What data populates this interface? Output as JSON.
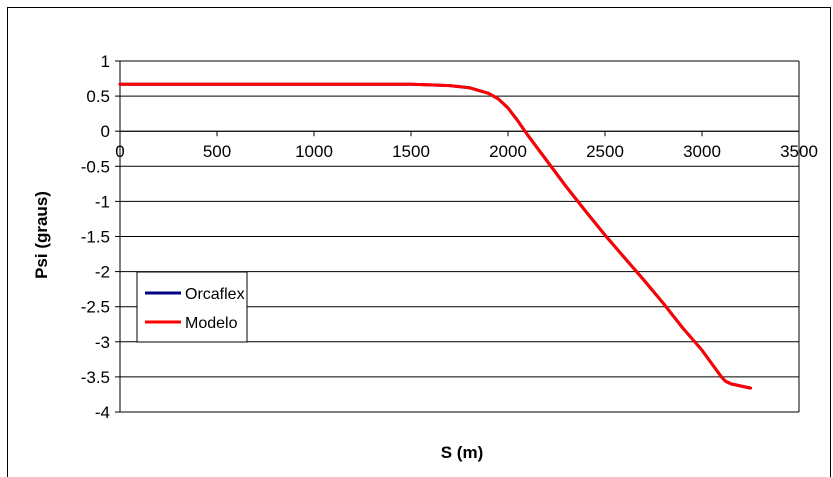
{
  "chart_data": {
    "type": "line",
    "xlabel": "S (m)",
    "ylabel": "Psi (graus)",
    "xlim": [
      0,
      3500
    ],
    "ylim": [
      -4,
      1
    ],
    "x_ticks": [
      "0",
      "500",
      "1000",
      "1500",
      "2000",
      "2500",
      "3000",
      "3500"
    ],
    "y_ticks": [
      "1",
      "0.5",
      "0",
      "-0.5",
      "-1",
      "-1.5",
      "-2",
      "-2.5",
      "-3",
      "-3.5",
      "-4"
    ],
    "grid": "horizontal",
    "legend_position": "bottom-left",
    "series": [
      {
        "name": "Orcaflex",
        "color": "#000080",
        "x": [
          0,
          500,
          1000,
          1500,
          1600,
          1700,
          1800,
          1900,
          1950,
          2000,
          2050,
          2100,
          2200,
          2300,
          2400,
          2500,
          2600,
          2700,
          2800,
          2900,
          3000,
          3100,
          3120,
          3150,
          3200,
          3250
        ],
        "y": [
          0.67,
          0.67,
          0.67,
          0.67,
          0.66,
          0.65,
          0.62,
          0.54,
          0.46,
          0.33,
          0.15,
          -0.05,
          -0.42,
          -0.79,
          -1.14,
          -1.48,
          -1.8,
          -2.12,
          -2.45,
          -2.8,
          -3.12,
          -3.5,
          -3.56,
          -3.6,
          -3.63,
          -3.66
        ]
      },
      {
        "name": "Modelo",
        "color": "#ff0000",
        "x": [
          0,
          500,
          1000,
          1500,
          1600,
          1700,
          1800,
          1900,
          1950,
          2000,
          2050,
          2100,
          2200,
          2300,
          2400,
          2500,
          2600,
          2700,
          2800,
          2900,
          3000,
          3100,
          3120,
          3150,
          3200,
          3250
        ],
        "y": [
          0.67,
          0.67,
          0.67,
          0.67,
          0.66,
          0.65,
          0.62,
          0.54,
          0.46,
          0.33,
          0.15,
          -0.05,
          -0.42,
          -0.79,
          -1.14,
          -1.48,
          -1.8,
          -2.12,
          -2.45,
          -2.8,
          -3.12,
          -3.5,
          -3.56,
          -3.6,
          -3.63,
          -3.66
        ]
      }
    ]
  }
}
